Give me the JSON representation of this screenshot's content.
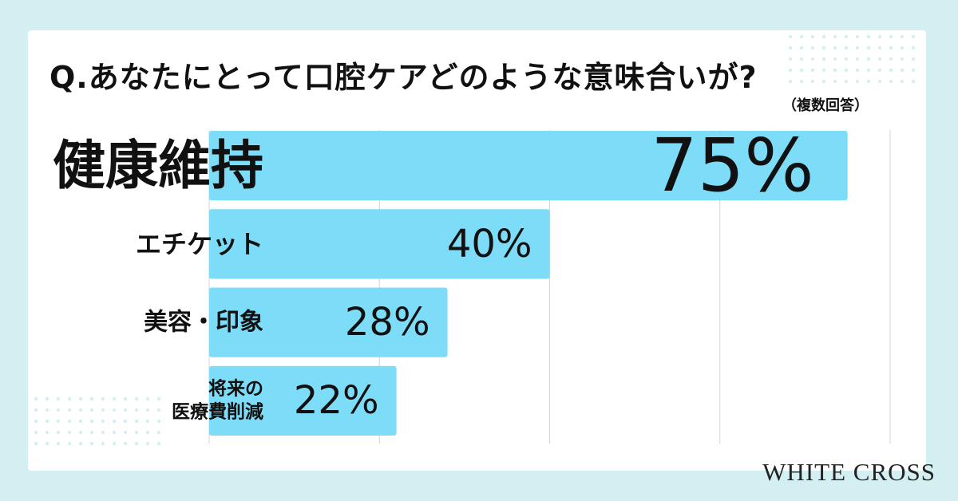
{
  "brand": "WHITE CROSS",
  "chart_data": {
    "type": "bar",
    "orientation": "horizontal",
    "title": "Q.あなたにとって口腔ケアどのような意味合いが?",
    "subtitle": "（複数回答）",
    "categories": [
      "健康維持",
      "エチケット",
      "美容・印象",
      "将来の\n医療費削減"
    ],
    "values": [
      75,
      40,
      28,
      22
    ],
    "value_labels": [
      "75%",
      "40%",
      "28%",
      "22%"
    ],
    "color": "#7ddcf8",
    "xlim": [
      0,
      80
    ],
    "xticks": [
      0,
      20,
      40,
      60,
      80
    ],
    "grid": true
  }
}
